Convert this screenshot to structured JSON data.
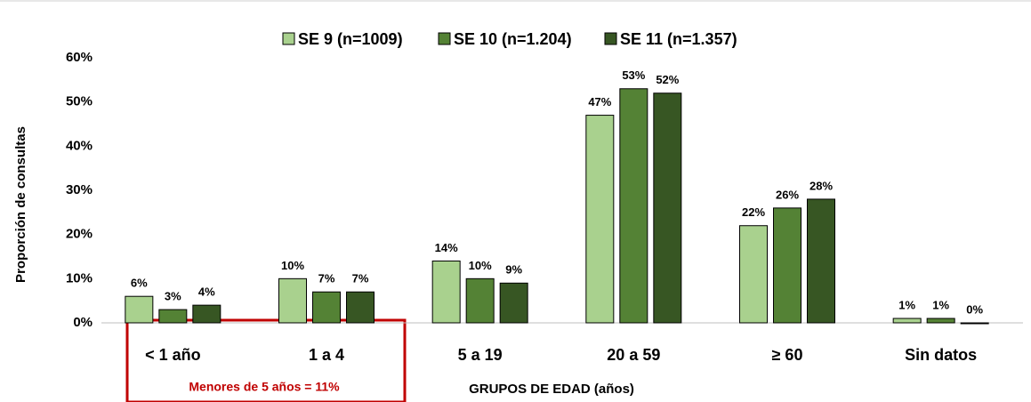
{
  "chart_data": {
    "type": "bar",
    "categories": [
      "< 1 año",
      "1 a 4",
      "5 a 19",
      "20 a 59",
      "≥ 60",
      "Sin datos"
    ],
    "series": [
      {
        "name": "SE 9 (n=1009)",
        "color": "#a9d18e",
        "values": [
          6,
          10,
          14,
          47,
          22,
          1
        ],
        "value_labels": [
          "6%",
          "10%",
          "14%",
          "47%",
          "22%",
          "1%"
        ]
      },
      {
        "name": "SE 10 (n=1.204)",
        "color": "#548235",
        "values": [
          3,
          7,
          10,
          53,
          26,
          1
        ],
        "value_labels": [
          "3%",
          "7%",
          "10%",
          "53%",
          "26%",
          "1%"
        ]
      },
      {
        "name": "SE 11 (n=1.357)",
        "color": "#375623",
        "values": [
          4,
          7,
          9,
          52,
          28,
          0
        ],
        "value_labels": [
          "4%",
          "7%",
          "9%",
          "52%",
          "28%",
          "0%"
        ]
      }
    ],
    "ylim": [
      0,
      60
    ],
    "yticks": [
      {
        "value": 0,
        "label": "0%"
      },
      {
        "value": 10,
        "label": "10%"
      },
      {
        "value": 20,
        "label": "20%"
      },
      {
        "value": 30,
        "label": "30%"
      },
      {
        "value": 40,
        "label": "40%"
      },
      {
        "value": 50,
        "label": "50%"
      },
      {
        "value": 60,
        "label": "60%"
      }
    ],
    "ylabel": "Proporción de consultas",
    "xlabel": "GRUPOS DE EDAD (años)",
    "annotation": "Menores de 5 años = 11%",
    "legend": "top",
    "grid": false
  }
}
